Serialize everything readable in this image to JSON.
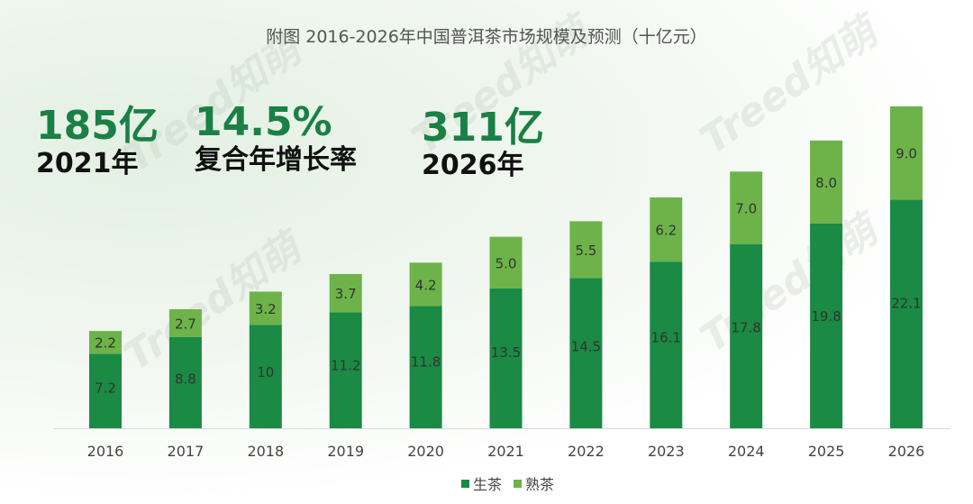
{
  "chart_data": {
    "type": "bar",
    "stacked": true,
    "title": "附图 2016-2026年中国普洱茶市场规模及预测（十亿元）",
    "categories": [
      "2016",
      "2017",
      "2018",
      "2019",
      "2020",
      "2021",
      "2022",
      "2023",
      "2024",
      "2025",
      "2026"
    ],
    "series": [
      {
        "name": "生茶",
        "color": "#1a8a45",
        "values": [
          7.2,
          8.8,
          10,
          11.2,
          11.8,
          13.5,
          14.5,
          16.1,
          17.8,
          19.8,
          22.1
        ]
      },
      {
        "name": "熟茶",
        "color": "#6db34a",
        "values": [
          2.2,
          2.7,
          3.2,
          3.7,
          4.2,
          5.0,
          5.5,
          6.2,
          7.0,
          8.0,
          9.0
        ]
      }
    ],
    "value_labels": {
      "生茶": [
        "7.2",
        "8.8",
        "10",
        "11.2",
        "11.8",
        "13.5",
        "14.5",
        "16.1",
        "17.8",
        "19.8",
        "22.1"
      ],
      "熟茶": [
        "2.2",
        "2.7",
        "3.2",
        "3.7",
        "4.2",
        "5.0",
        "5.5",
        "6.2",
        "7.0",
        "8.0",
        "9.0"
      ]
    },
    "xlabel": "",
    "ylabel": "",
    "ylim": [
      0,
      32
    ],
    "grid": false,
    "legend": "bottom-right"
  },
  "highlights": [
    {
      "value": "185亿",
      "label": "2021年"
    },
    {
      "value": "14.5%",
      "label": "复合年增长率"
    },
    {
      "value": "311亿",
      "label": "2026年"
    }
  ],
  "watermark": "Treed知萌"
}
